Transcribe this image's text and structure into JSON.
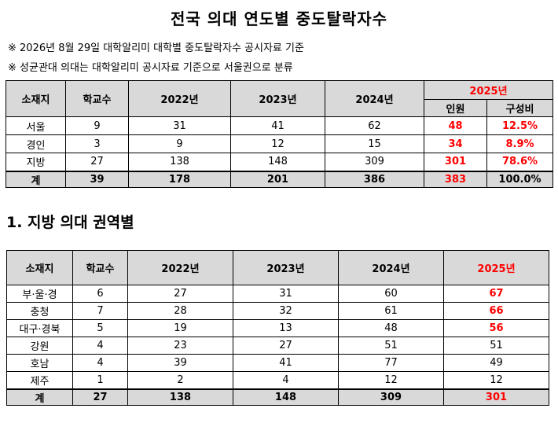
{
  "title": "전국 의대 연도별 중도탈락자수",
  "notes": [
    "※ 2026년 8월 29일 대학알리미 대학별 중도탈락자수 공시자료 기준",
    "※ 성균관대 의대는 대학알리미 공시자료 기준으로 서울권으로 분류"
  ],
  "table1": {
    "headers": {
      "region": "소재지",
      "schools": "학교수",
      "y2022": "2022년",
      "y2023": "2023년",
      "y2024": "2024년",
      "y2025": "2025년",
      "people": "인원",
      "ratio": "구성비"
    },
    "rows": [
      {
        "region": "서울",
        "schools": "9",
        "y2022": "31",
        "y2023": "41",
        "y2024": "62",
        "people": "48",
        "ratio": "12.5%"
      },
      {
        "region": "경인",
        "schools": "3",
        "y2022": "9",
        "y2023": "12",
        "y2024": "15",
        "people": "34",
        "ratio": "8.9%"
      },
      {
        "region": "지방",
        "schools": "27",
        "y2022": "138",
        "y2023": "148",
        "y2024": "309",
        "people": "301",
        "ratio": "78.6%"
      }
    ],
    "total": {
      "region": "계",
      "schools": "39",
      "y2022": "178",
      "y2023": "201",
      "y2024": "386",
      "people": "383",
      "ratio": "100.0%"
    }
  },
  "section_title": "1. 지방 의대 권역별",
  "table2": {
    "headers": {
      "region": "소재지",
      "schools": "학교수",
      "y2022": "2022년",
      "y2023": "2023년",
      "y2024": "2024년",
      "y2025": "2025년"
    },
    "rows": [
      {
        "region": "부·울·경",
        "schools": "6",
        "y2022": "27",
        "y2023": "31",
        "y2024": "60",
        "y2025": "67",
        "red": true
      },
      {
        "region": "충청",
        "schools": "7",
        "y2022": "28",
        "y2023": "32",
        "y2024": "61",
        "y2025": "66",
        "red": true
      },
      {
        "region": "대구·경북",
        "schools": "5",
        "y2022": "19",
        "y2023": "13",
        "y2024": "48",
        "y2025": "56",
        "red": true
      },
      {
        "region": "강원",
        "schools": "4",
        "y2022": "23",
        "y2023": "27",
        "y2024": "51",
        "y2025": "51",
        "red": false
      },
      {
        "region": "호남",
        "schools": "4",
        "y2022": "39",
        "y2023": "41",
        "y2024": "77",
        "y2025": "49",
        "red": false
      },
      {
        "region": "제주",
        "schools": "1",
        "y2022": "2",
        "y2023": "4",
        "y2024": "12",
        "y2025": "12",
        "red": false
      }
    ],
    "total": {
      "region": "계",
      "schools": "27",
      "y2022": "138",
      "y2023": "148",
      "y2024": "309",
      "y2025": "301"
    }
  },
  "colors": {
    "accent_red": "#ff0000",
    "header_bg": "#d9d9d9"
  }
}
